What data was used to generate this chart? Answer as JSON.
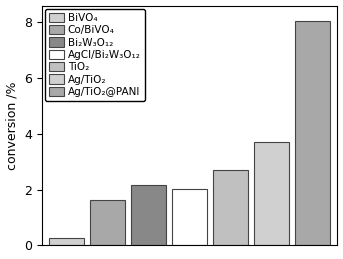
{
  "categories": [
    "BiVO₄",
    "Co/BiVO₄",
    "Bi₂W₃O₁₂",
    "AgCl/Bi₂W₃O₁₂",
    "TiO₂",
    "Ag/TiO₂",
    "Ag/TiO₂@PANI"
  ],
  "values": [
    0.25,
    1.62,
    2.15,
    2.02,
    2.72,
    3.72,
    8.05
  ],
  "bar_colors": [
    "#d0d0d0",
    "#a8a8a8",
    "#888888",
    "#ffffff",
    "#c0c0c0",
    "#d0d0d0",
    "#a8a8a8"
  ],
  "bar_edgecolors": [
    "#444444",
    "#444444",
    "#444444",
    "#444444",
    "#444444",
    "#444444",
    "#444444"
  ],
  "legend_labels": [
    "BiVO₄",
    "Co/BiVO₄",
    "Bi₂W₃O₁₂",
    "AgCl/Bi₂W₃O₁₂",
    "TiO₂",
    "Ag/TiO₂",
    "Ag/TiO₂@PANI"
  ],
  "legend_colors": [
    "#d0d0d0",
    "#a8a8a8",
    "#888888",
    "#ffffff",
    "#c0c0c0",
    "#d0d0d0",
    "#a8a8a8"
  ],
  "ylabel": "conversion /%",
  "ylim": [
    0,
    8.6
  ],
  "yticks": [
    0,
    2,
    4,
    6,
    8
  ],
  "background_color": "#ffffff",
  "font_size": 9,
  "legend_fontsize": 7.5,
  "bar_width": 0.85
}
